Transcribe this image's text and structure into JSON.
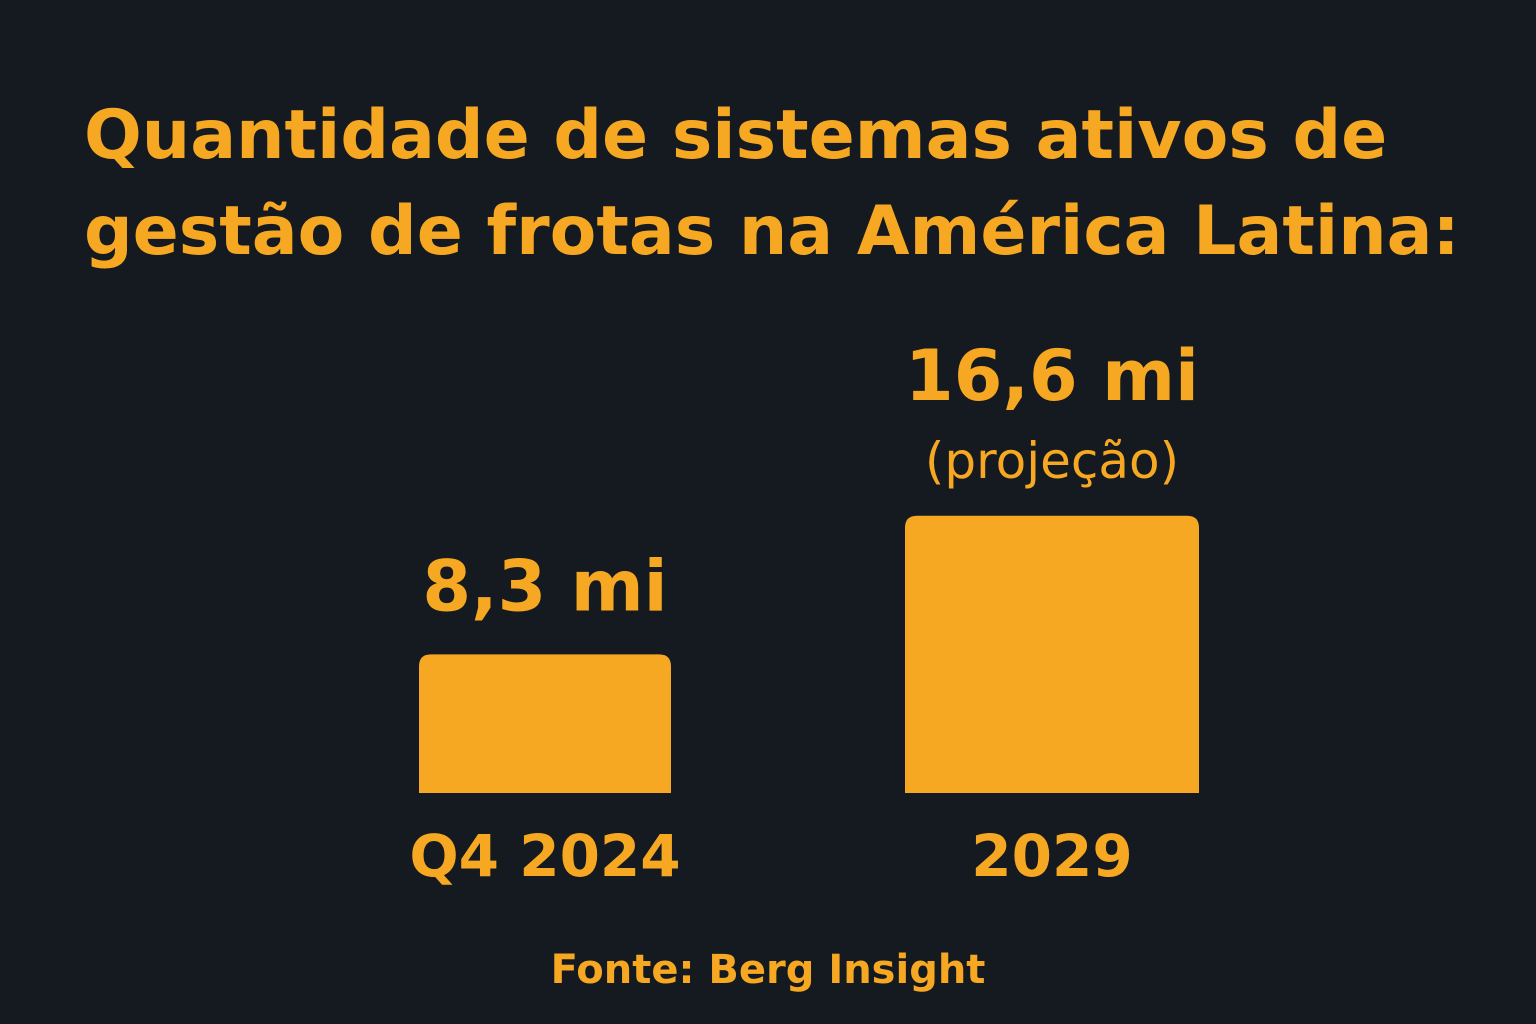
{
  "title_lines": [
    "Quantidade de sistemas ativos de",
    "gestão de frotas na América Latina:"
  ],
  "source": "Fonte: Berg Insight",
  "colors": {
    "background": "#141a1f",
    "accent": "#f7a823"
  },
  "chart_data": {
    "type": "bar",
    "title": "Quantidade de sistemas ativos de gestão de frotas na América Latina:",
    "categories": [
      "Q4 2024",
      "2029"
    ],
    "values": [
      8.3,
      16.6
    ],
    "value_labels": [
      "8,3 mi",
      "16,6 mi"
    ],
    "value_notes": [
      "",
      "(projeção)"
    ],
    "xlabel": "",
    "ylabel": "",
    "grid": false,
    "legend": "none"
  }
}
